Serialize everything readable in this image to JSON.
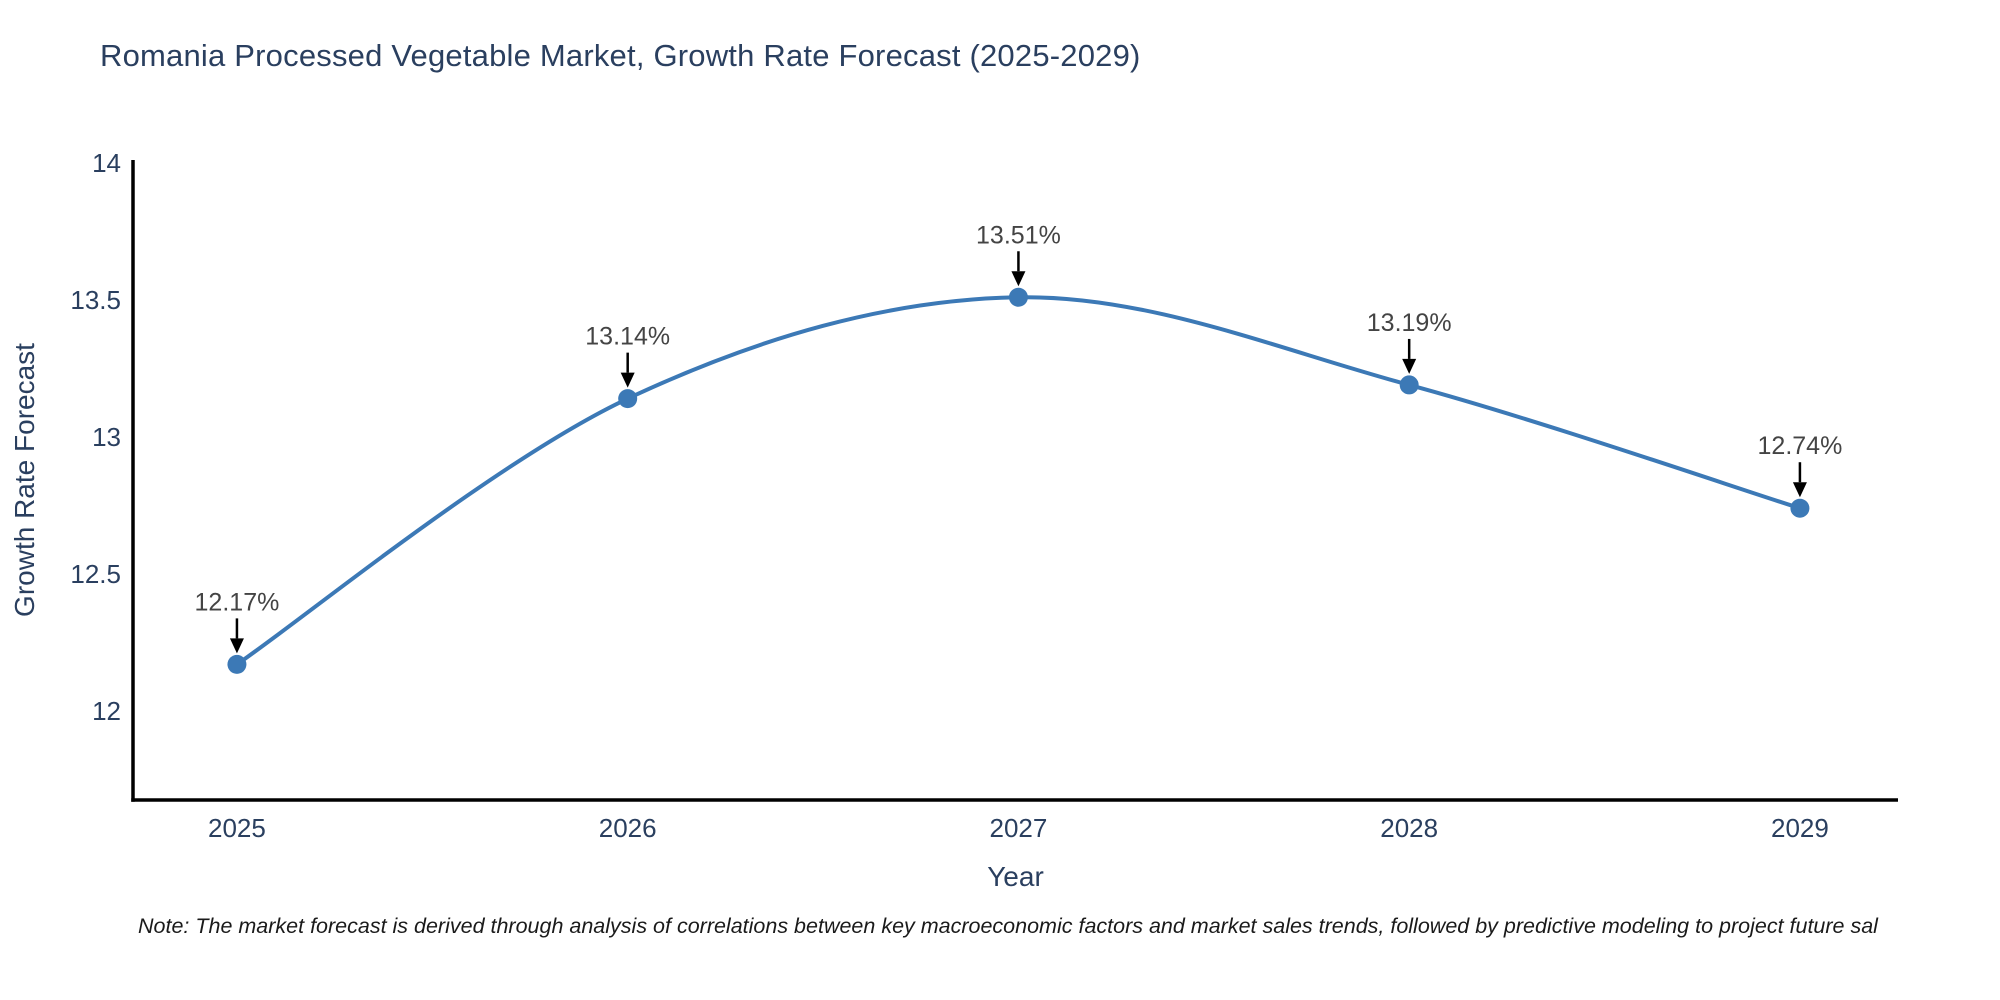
{
  "title": "Romania Processed Vegetable Market, Growth Rate Forecast (2025-2029)",
  "note": "Note: The market forecast is derived through analysis of correlations between key macroeconomic factors and market sales trends, followed by predictive modeling to project future sal",
  "chart_data": {
    "type": "line",
    "curve": "spline",
    "title": "Romania Processed Vegetable Market, Growth Rate Forecast (2025-2029)",
    "xlabel": "Year",
    "ylabel": "Growth Rate Forecast",
    "x": [
      2025,
      2026,
      2027,
      2028,
      2029
    ],
    "y": [
      12.17,
      13.14,
      13.51,
      13.19,
      12.74
    ],
    "point_labels": [
      "12.17%",
      "13.14%",
      "13.51%",
      "13.19%",
      "12.74%"
    ],
    "xtick_labels": [
      "2025",
      "2026",
      "2027",
      "2028",
      "2029"
    ],
    "yticks": [
      12,
      12.5,
      13,
      13.5,
      14
    ],
    "ytick_labels": [
      "12",
      "12.5",
      "13",
      "13.5",
      "14"
    ],
    "xlim": [
      2024.734,
      2029.251
    ],
    "ylim": [
      11.675,
      14.011
    ],
    "grid": false,
    "legend": "none",
    "colors": {
      "line": "#3c79b6",
      "marker": "#3c79b6",
      "axis": "#000000",
      "tick_text": "#2a3f5f",
      "axis_title_text": "#2a3f5f",
      "chart_title_text": "#2a3f5f",
      "annotation_text": "#444444",
      "arrow": "#000000",
      "background": "#ffffff"
    }
  }
}
